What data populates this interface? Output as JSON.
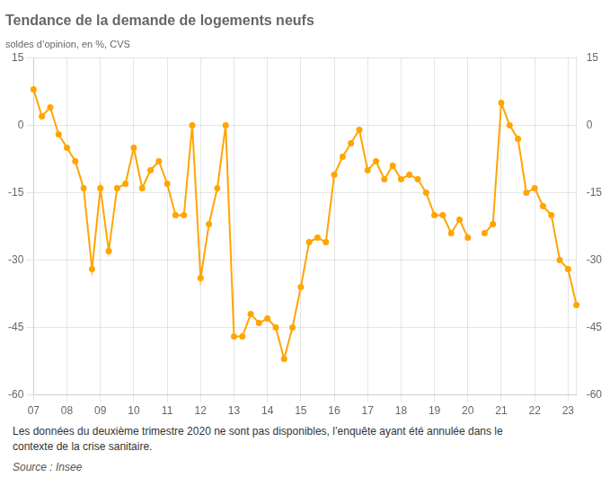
{
  "chart_data": {
    "type": "line",
    "title": "Tendance de la demande de logements neufs",
    "subtitle": "soldes d’opinion, en %, CVS",
    "annotations": [
      "Les données du deuxième trimestre 2020 ne sont pas disponibles, l’enquête ayant été annulée dans le\ncontexte de la crise sanitaire.",
      "Source : Insee"
    ],
    "categories": [
      "07",
      null,
      null,
      null,
      "08",
      null,
      null,
      null,
      "09",
      null,
      null,
      null,
      "10",
      null,
      null,
      null,
      "11",
      null,
      null,
      null,
      "12",
      null,
      null,
      null,
      "13",
      null,
      null,
      null,
      "14",
      null,
      null,
      null,
      "15",
      null,
      null,
      null,
      "16",
      null,
      null,
      null,
      "17",
      null,
      null,
      null,
      "18",
      null,
      null,
      null,
      "19",
      null,
      null,
      null,
      "20",
      null,
      null,
      null,
      "21",
      null,
      null,
      null,
      "22",
      null,
      null,
      null,
      "23",
      null
    ],
    "values": [
      8,
      2,
      4,
      -2,
      -5,
      -8,
      -14,
      -32,
      -14,
      -28,
      -14,
      -13,
      -5,
      -14,
      -10,
      -8,
      -13,
      -20,
      -20,
      0,
      -34,
      -22,
      -14,
      0,
      -47,
      -47,
      -42,
      -44,
      -43,
      -45,
      -52,
      -45,
      -36,
      -26,
      -25,
      -26,
      -11,
      -7,
      -4,
      -1,
      -10,
      -8,
      -12,
      -9,
      -12,
      -11,
      -12,
      -15,
      -20,
      -20,
      -24,
      -21,
      -25,
      null,
      -24,
      -22,
      5,
      0,
      -3,
      -15,
      -14,
      -18,
      -20,
      -30,
      -32,
      -40
    ],
    "color": "#FFA500",
    "marker": "circle",
    "ylim": [
      -60,
      15
    ],
    "yticks": [
      -60,
      -45,
      -30,
      -15,
      0,
      15
    ],
    "y2lim": [
      -60,
      15
    ],
    "y2ticks": [
      -60,
      -45,
      -30,
      -15,
      0,
      15
    ],
    "grid": true
  }
}
